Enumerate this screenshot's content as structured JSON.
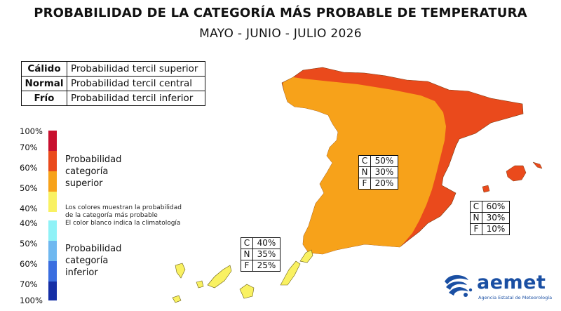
{
  "title": "PROBABILIDAD DE LA CATEGORÍA MÁS PROBABLE DE TEMPERATURA",
  "subtitle": "MAYO - JUNIO - JULIO 2026",
  "legend_table": [
    {
      "category": "Cálido",
      "description": "Probabilidad tercil superior"
    },
    {
      "category": "Normal",
      "description": "Probabilidad tercil central"
    },
    {
      "category": "Frío",
      "description": "Probabilidad tercil inferior"
    }
  ],
  "color_scale": {
    "labels_upper": [
      "100%",
      "70%",
      "60%",
      "50%",
      "40%"
    ],
    "labels_lower": [
      "40%",
      "50%",
      "60%",
      "70%",
      "100%"
    ],
    "colors_upper": [
      "#c8102e",
      "#ea4a1c",
      "#f7a21a",
      "#f9f162"
    ],
    "colors_lower": [
      "#8ff2f7",
      "#6fb8f0",
      "#3a6ee0",
      "#152fa6"
    ]
  },
  "caption_upper": [
    "Probabilidad",
    "categoría",
    "superior"
  ],
  "caption_lower": [
    "Probabilidad",
    "categoría",
    "inferior"
  ],
  "note_lines": [
    "Los colores muestran la probabilidad",
    "de la categoría más probable",
    "El color blanco indica la climatología"
  ],
  "regions": [
    {
      "name": "peninsula-interior",
      "C": "50%",
      "N": "30%",
      "F": "20%",
      "color": "#f7a21a"
    },
    {
      "name": "peninsula-east-north-baleares",
      "C": "60%",
      "N": "30%",
      "F": "10%",
      "color": "#ea4a1c"
    },
    {
      "name": "canarias",
      "C": "40%",
      "N": "35%",
      "F": "25%",
      "color": "#f9f162"
    }
  ],
  "box_keys": [
    "C",
    "N",
    "F"
  ],
  "logo": {
    "name": "aemet",
    "subtitle": "Agencia Estatal de Meteorología",
    "color": "#1a4fa3"
  }
}
